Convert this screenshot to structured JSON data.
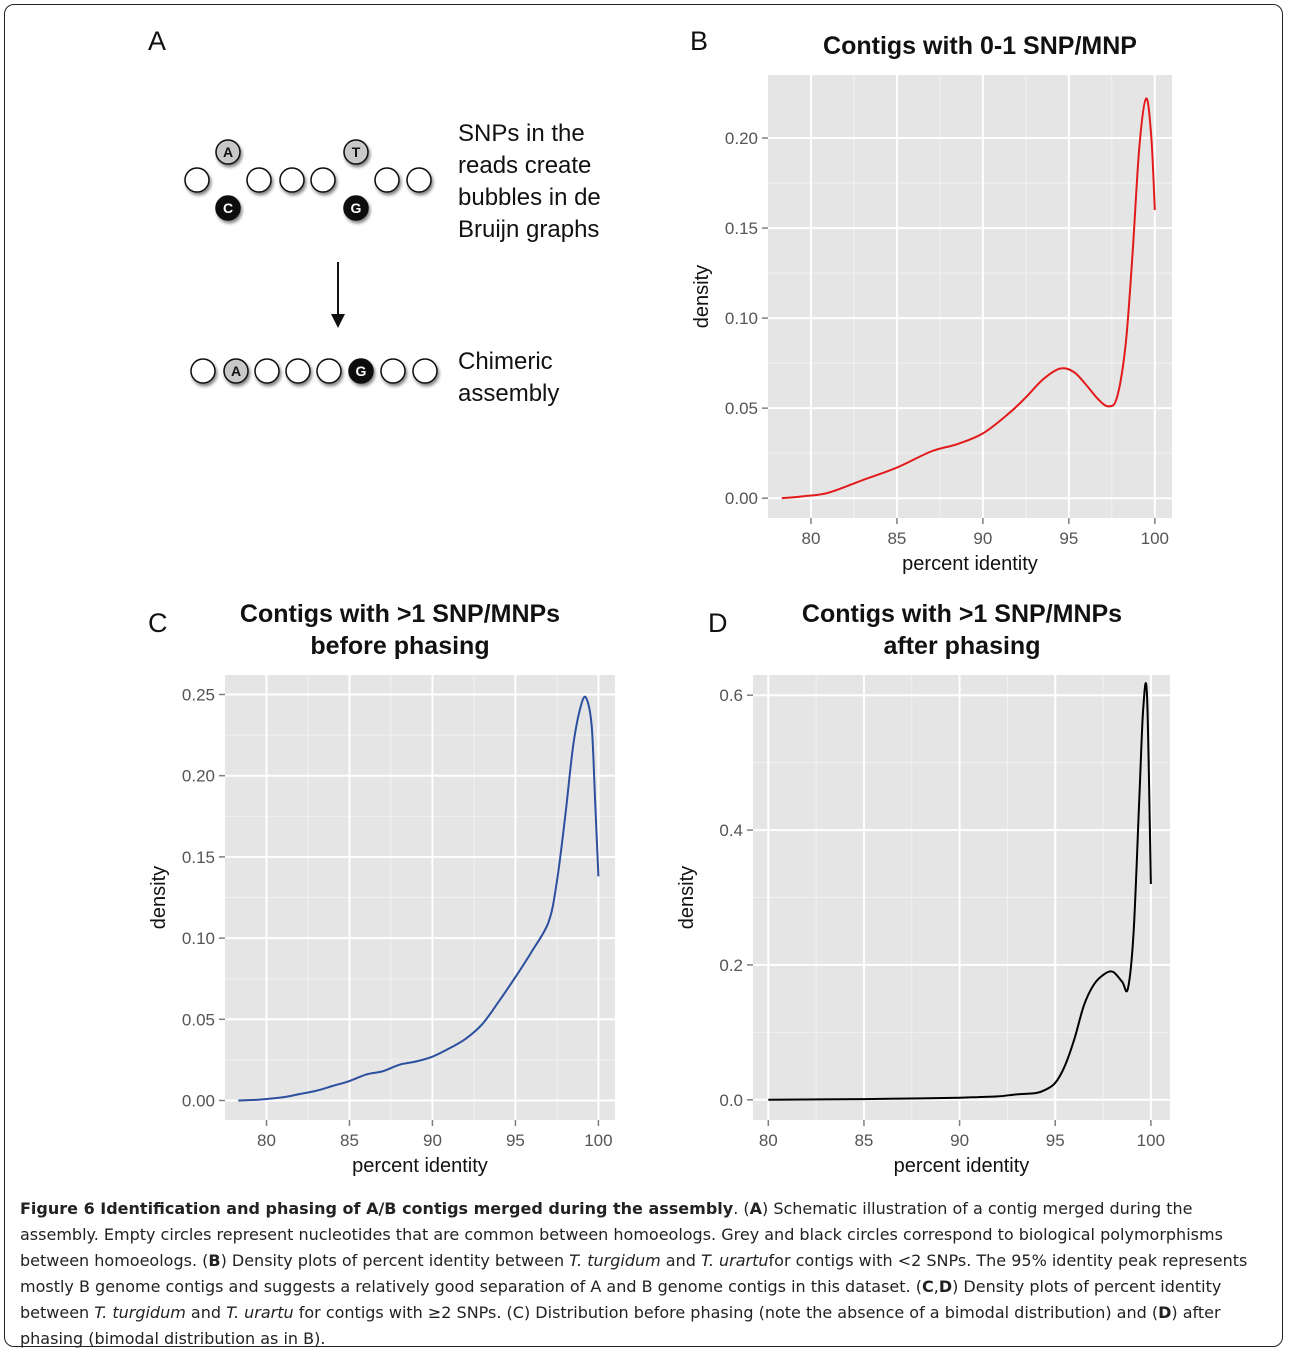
{
  "panels": {
    "A": {
      "letter": "A",
      "bubble_text": [
        "SNPs in the",
        "reads create",
        "bubbles in de",
        "Bruijn  graphs"
      ],
      "chimeric_text": [
        "Chimeric",
        "assembly"
      ],
      "top_alleles": [
        "A",
        "T"
      ],
      "bottom_alleles": [
        "C",
        "G"
      ],
      "chimeric_alleles": [
        "A",
        "G"
      ]
    },
    "B": {
      "letter": "B"
    },
    "C": {
      "letter": "C"
    },
    "D": {
      "letter": "D"
    }
  },
  "chart_data": [
    {
      "id": "B",
      "type": "line",
      "title": "Contigs with 0-1 SNP/MNP",
      "xlabel": "percent identity",
      "ylabel": "density",
      "xlim": [
        77.5,
        101
      ],
      "ylim": [
        -0.011,
        0.235
      ],
      "xticks": [
        80,
        85,
        90,
        95,
        100
      ],
      "xtick_labels": [
        "80",
        "85",
        "90",
        "95",
        "100"
      ],
      "yticks": [
        0,
        0.05,
        0.1,
        0.15,
        0.2
      ],
      "ytick_labels": [
        "0.00",
        "0.05",
        "0.10",
        "0.15",
        "0.20"
      ],
      "grid": true,
      "color": "#e31a1c",
      "series": [
        {
          "x": [
            78.3,
            79.5,
            81,
            83,
            85,
            87,
            88.5,
            90,
            91.5,
            92.5,
            93.5,
            94.5,
            95.3,
            96,
            96.7,
            97.3,
            97.8,
            98.3,
            98.7,
            99.1,
            99.5,
            99.8,
            100
          ],
          "y": [
            0.0,
            0.001,
            0.003,
            0.01,
            0.017,
            0.026,
            0.03,
            0.036,
            0.047,
            0.056,
            0.066,
            0.072,
            0.07,
            0.063,
            0.055,
            0.051,
            0.056,
            0.085,
            0.135,
            0.195,
            0.222,
            0.2,
            0.16
          ]
        }
      ]
    },
    {
      "id": "C",
      "type": "line",
      "title": "Contigs with >1 SNP/MNPs\nbefore phasing",
      "xlabel": "percent identity",
      "ylabel": "density",
      "xlim": [
        77.5,
        101
      ],
      "ylim": [
        -0.012,
        0.262
      ],
      "xticks": [
        80,
        85,
        90,
        95,
        100
      ],
      "xtick_labels": [
        "80",
        "85",
        "90",
        "95",
        "100"
      ],
      "yticks": [
        0,
        0.05,
        0.1,
        0.15,
        0.2,
        0.25
      ],
      "ytick_labels": [
        "0.00",
        "0.05",
        "0.10",
        "0.15",
        "0.20",
        "0.25"
      ],
      "grid": true,
      "color": "#2c4f9e",
      "series": [
        {
          "x": [
            78.3,
            79.5,
            81,
            82,
            83,
            84,
            85,
            86,
            87,
            88,
            89,
            90,
            91,
            92,
            93,
            94,
            95,
            96,
            97,
            97.5,
            98,
            98.5,
            99,
            99.3,
            99.6,
            99.8,
            100
          ],
          "y": [
            0.0,
            0.0005,
            0.002,
            0.004,
            0.006,
            0.009,
            0.012,
            0.016,
            0.018,
            0.022,
            0.024,
            0.027,
            0.032,
            0.038,
            0.047,
            0.061,
            0.076,
            0.092,
            0.11,
            0.135,
            0.175,
            0.22,
            0.245,
            0.247,
            0.23,
            0.185,
            0.138
          ]
        }
      ]
    },
    {
      "id": "D",
      "type": "line",
      "title": "Contigs with >1 SNP/MNPs\nafter phasing",
      "xlabel": "percent identity",
      "ylabel": "density",
      "xlim": [
        79.2,
        101
      ],
      "ylim": [
        -0.03,
        0.63
      ],
      "xticks": [
        80,
        85,
        90,
        95,
        100
      ],
      "xtick_labels": [
        "80",
        "85",
        "90",
        "95",
        "100"
      ],
      "yticks": [
        0,
        0.2,
        0.4,
        0.6
      ],
      "ytick_labels": [
        "0.0",
        "0.2",
        "0.4",
        "0.6"
      ],
      "grid": true,
      "color": "#000000",
      "series": [
        {
          "x": [
            80,
            85,
            88,
            90,
            91,
            92,
            93,
            94,
            94.5,
            95,
            95.5,
            96,
            96.5,
            97,
            97.5,
            98,
            98.5,
            98.8,
            99.1,
            99.4,
            99.6,
            99.8,
            100
          ],
          "y": [
            0.0,
            0.001,
            0.002,
            0.003,
            0.004,
            0.005,
            0.008,
            0.01,
            0.015,
            0.025,
            0.05,
            0.09,
            0.14,
            0.17,
            0.185,
            0.19,
            0.175,
            0.165,
            0.25,
            0.45,
            0.58,
            0.598,
            0.32
          ]
        }
      ]
    }
  ],
  "caption": {
    "label": "Figure 6 Identification and phasing of A/B contigs merged during the assembly",
    "parts": [
      {
        "t": ". ("
      },
      {
        "t": "A",
        "b": true
      },
      {
        "t": ") Schematic illustration of a contig merged during the assembly. Empty circles represent nucleotides that are common between homoeologs. Grey and black circles correspond to biological polymorphisms between homoeologs. ("
      },
      {
        "t": "B",
        "b": true
      },
      {
        "t": ") Density plots of percent identity between "
      },
      {
        "t": "T. turgidum",
        "i": true
      },
      {
        "t": " and "
      },
      {
        "t": "T. urartu",
        "i": true
      },
      {
        "t": "for contigs with <2 SNPs. The 95% identity peak represents mostly B genome contigs and suggests a relatively good separation of A and B genome contigs in this dataset. ("
      },
      {
        "t": "C",
        "b": true
      },
      {
        "t": ","
      },
      {
        "t": "D",
        "b": true
      },
      {
        "t": ") Density plots of percent identity between "
      },
      {
        "t": "T. turgidum",
        "i": true
      },
      {
        "t": " and "
      },
      {
        "t": "T. urartu",
        "i": true
      },
      {
        "t": " for contigs with ≥2 SNPs. (C) Distribution before phasing (note the absence of a bimodal distribution) and ("
      },
      {
        "t": "D",
        "b": true
      },
      {
        "t": ") after phasing (bimodal distribution as in B)."
      }
    ]
  }
}
